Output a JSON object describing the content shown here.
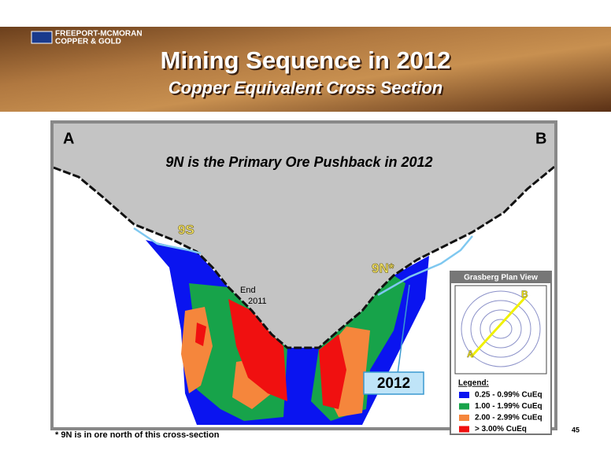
{
  "header": {
    "company_line1": "FREEPORT-MCMORAN",
    "company_line2": "COPPER & GOLD",
    "title": "Mining Sequence in 2012",
    "subtitle": "Copper Equivalent Cross Section"
  },
  "section": {
    "left_label": "A",
    "right_label": "B",
    "headline": "9N is the Primary Ore Pushback in 2012",
    "label_9s": "9S",
    "label_9n": "9N*",
    "end_line1": "End",
    "end_line2": "2011",
    "year_box": "2012"
  },
  "inset": {
    "title": "Grasberg Plan View",
    "point_a": "A",
    "point_b": "B"
  },
  "legend": {
    "title": "Legend:",
    "items": [
      {
        "label": "0.25 - 0.99% CuEq",
        "color": "#0a14f0"
      },
      {
        "label": "1.00 - 1.99% CuEq",
        "color": "#17a34a"
      },
      {
        "label": "2.00 - 2.99% CuEq",
        "color": "#f5863c"
      },
      {
        "label": "> 3.00% CuEq",
        "color": "#f01010"
      }
    ]
  },
  "footnote": "* 9N is in ore north of this cross-section",
  "page_number": "45"
}
